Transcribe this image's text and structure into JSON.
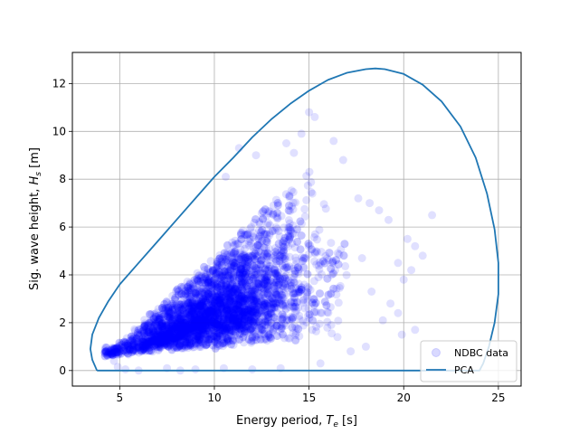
{
  "chart_data": {
    "type": "scatter",
    "xlabel": "Energy period, ",
    "xlabel_sym": "T",
    "xlabel_sub": "e",
    "xlabel_unit": " [s]",
    "ylabel": "Sig. wave height, ",
    "ylabel_sym": "H",
    "ylabel_sub": "s",
    "ylabel_unit": " [m]",
    "xlim": [
      2.5,
      26.2
    ],
    "ylim": [
      -0.65,
      13.3
    ],
    "xticks": [
      5,
      10,
      15,
      20,
      25
    ],
    "yticks": [
      0,
      2,
      4,
      6,
      8,
      10,
      12
    ],
    "grid": true,
    "legend_position": "lower-right",
    "series": [
      {
        "name": "NDBC data",
        "kind": "scatter",
        "color": "#0000ff",
        "alpha": 0.12,
        "outliers": [
          [
            15.0,
            10.8
          ],
          [
            15.3,
            10.6
          ],
          [
            14.6,
            9.9
          ],
          [
            13.8,
            9.5
          ],
          [
            14.2,
            9.1
          ],
          [
            16.3,
            9.6
          ],
          [
            16.8,
            8.8
          ],
          [
            17.6,
            7.2
          ],
          [
            18.2,
            7.0
          ],
          [
            18.7,
            6.7
          ],
          [
            19.2,
            6.3
          ],
          [
            21.5,
            6.5
          ],
          [
            20.2,
            5.5
          ],
          [
            20.6,
            5.2
          ],
          [
            21.0,
            4.8
          ],
          [
            20.4,
            4.2
          ],
          [
            19.7,
            4.5
          ],
          [
            20.0,
            3.8
          ],
          [
            19.3,
            2.8
          ],
          [
            19.7,
            2.4
          ],
          [
            18.9,
            2.1
          ],
          [
            20.6,
            1.7
          ],
          [
            19.9,
            1.5
          ],
          [
            11.3,
            9.3
          ],
          [
            12.2,
            9.0
          ],
          [
            10.6,
            8.1
          ],
          [
            17.8,
            4.7
          ],
          [
            18.3,
            3.3
          ],
          [
            16.5,
            1.4
          ],
          [
            17.2,
            0.8
          ],
          [
            18.0,
            1.0
          ],
          [
            15.6,
            0.3
          ],
          [
            6.0,
            0.0
          ],
          [
            7.5,
            0.1
          ],
          [
            9.0,
            0.05
          ],
          [
            10.5,
            0.1
          ],
          [
            12.0,
            0.05
          ],
          [
            13.5,
            0.1
          ],
          [
            4.7,
            0.4
          ],
          [
            4.9,
            0.15
          ],
          [
            5.3,
            0.05
          ],
          [
            8.2,
            0.0
          ]
        ]
      },
      {
        "name": "PCA",
        "kind": "line",
        "color": "#1f77b4",
        "points": [
          [
            3.8,
            0.0
          ],
          [
            3.55,
            0.45
          ],
          [
            3.45,
            0.9
          ],
          [
            3.55,
            1.5
          ],
          [
            3.9,
            2.2
          ],
          [
            4.4,
            2.9
          ],
          [
            5.0,
            3.6
          ],
          [
            6.0,
            4.5
          ],
          [
            7.0,
            5.4
          ],
          [
            8.0,
            6.3
          ],
          [
            9.0,
            7.2
          ],
          [
            10.0,
            8.1
          ],
          [
            11.0,
            8.9
          ],
          [
            12.0,
            9.75
          ],
          [
            13.0,
            10.5
          ],
          [
            14.0,
            11.15
          ],
          [
            15.0,
            11.7
          ],
          [
            16.0,
            12.15
          ],
          [
            17.0,
            12.45
          ],
          [
            18.0,
            12.6
          ],
          [
            18.5,
            12.63
          ],
          [
            19.0,
            12.6
          ],
          [
            20.0,
            12.4
          ],
          [
            21.0,
            11.95
          ],
          [
            22.0,
            11.25
          ],
          [
            23.0,
            10.2
          ],
          [
            23.8,
            8.9
          ],
          [
            24.4,
            7.4
          ],
          [
            24.8,
            5.9
          ],
          [
            25.0,
            4.5
          ],
          [
            25.0,
            3.2
          ],
          [
            24.8,
            2.0
          ],
          [
            24.5,
            1.0
          ],
          [
            24.2,
            0.3
          ],
          [
            24.0,
            0.0
          ],
          [
            20.0,
            0.0
          ],
          [
            15.0,
            0.0
          ],
          [
            10.0,
            0.0
          ],
          [
            5.0,
            0.0
          ],
          [
            3.8,
            0.0
          ]
        ]
      }
    ]
  }
}
